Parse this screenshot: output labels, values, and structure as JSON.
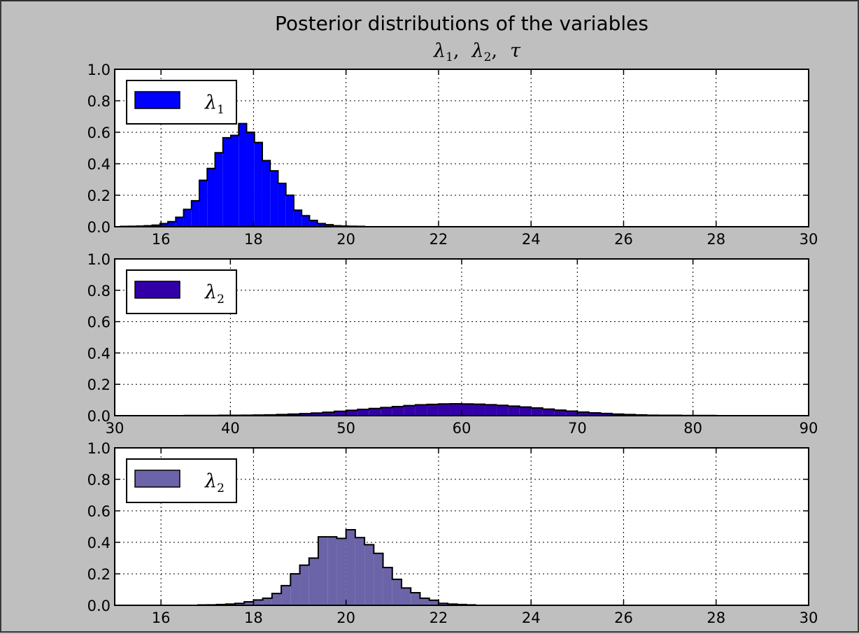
{
  "figure": {
    "title": "Posterior distributions of the variables",
    "subtitle": {
      "parts": [
        {
          "sym": "λ",
          "sub": "1",
          "sep": ","
        },
        {
          "sym": "λ",
          "sub": "2",
          "sep": ","
        },
        {
          "sym": "τ",
          "sub": "",
          "sep": ""
        }
      ]
    }
  },
  "chart_data": [
    {
      "type": "histogram",
      "legend": {
        "sym": "λ",
        "sub": "1",
        "placement": "top-left"
      },
      "color": "#0000ff",
      "xlim": [
        15,
        30
      ],
      "ylim": [
        0,
        1.0
      ],
      "xticks": [
        16,
        18,
        20,
        22,
        24,
        26,
        28,
        30
      ],
      "yticks": [
        0.0,
        0.2,
        0.4,
        0.6,
        0.8,
        1.0
      ],
      "ytick_labels": [
        "0.0",
        "0.2",
        "0.4",
        "0.6",
        "0.8",
        "1.0"
      ],
      "grid": true,
      "bin_start": 15.13,
      "bin_width": 0.17,
      "values": [
        0.002,
        0.003,
        0.004,
        0.006,
        0.01,
        0.02,
        0.032,
        0.06,
        0.11,
        0.165,
        0.295,
        0.37,
        0.47,
        0.565,
        0.58,
        0.655,
        0.6,
        0.535,
        0.42,
        0.355,
        0.275,
        0.2,
        0.105,
        0.07,
        0.04,
        0.02,
        0.013,
        0.006,
        0.004,
        0.003,
        0.002
      ]
    },
    {
      "type": "histogram",
      "legend": {
        "sym": "λ",
        "sub": "2",
        "placement": "top-left"
      },
      "color": "#3300a8",
      "xlim": [
        30,
        90
      ],
      "ylim": [
        0,
        1.0
      ],
      "xticks": [
        30,
        40,
        50,
        60,
        70,
        80,
        90
      ],
      "yticks": [
        0.0,
        0.2,
        0.4,
        0.6,
        0.8,
        1.0
      ],
      "ytick_labels": [
        "0.0",
        "0.2",
        "0.4",
        "0.6",
        "0.8",
        "1.0"
      ],
      "grid": true,
      "bin_start": 36.0,
      "bin_width": 1.0,
      "values": [
        0.001,
        0.001,
        0.001,
        0.002,
        0.002,
        0.003,
        0.004,
        0.005,
        0.007,
        0.01,
        0.013,
        0.017,
        0.022,
        0.028,
        0.034,
        0.04,
        0.046,
        0.052,
        0.058,
        0.064,
        0.069,
        0.072,
        0.075,
        0.076,
        0.075,
        0.073,
        0.07,
        0.066,
        0.061,
        0.055,
        0.049,
        0.042,
        0.035,
        0.029,
        0.023,
        0.018,
        0.014,
        0.01,
        0.007,
        0.005,
        0.003,
        0.002,
        0.002,
        0.001,
        0.001,
        0.001
      ]
    },
    {
      "type": "histogram",
      "legend": {
        "sym": "λ",
        "sub": "2",
        "placement": "top-left"
      },
      "color": "#6b64a8",
      "xlim": [
        15,
        30
      ],
      "ylim": [
        0,
        1.0
      ],
      "xticks": [
        16,
        18,
        20,
        22,
        24,
        26,
        28,
        30
      ],
      "yticks": [
        0.0,
        0.2,
        0.4,
        0.6,
        0.8,
        1.0
      ],
      "ytick_labels": [
        "0.0",
        "0.2",
        "0.4",
        "0.6",
        "0.8",
        "1.0"
      ],
      "grid": true,
      "bin_start": 16.8,
      "bin_width": 0.2,
      "values": [
        0.002,
        0.003,
        0.005,
        0.008,
        0.012,
        0.022,
        0.034,
        0.045,
        0.075,
        0.125,
        0.2,
        0.255,
        0.3,
        0.435,
        0.435,
        0.425,
        0.48,
        0.43,
        0.385,
        0.33,
        0.24,
        0.165,
        0.11,
        0.08,
        0.045,
        0.032,
        0.012,
        0.008,
        0.005,
        0.003
      ]
    }
  ]
}
